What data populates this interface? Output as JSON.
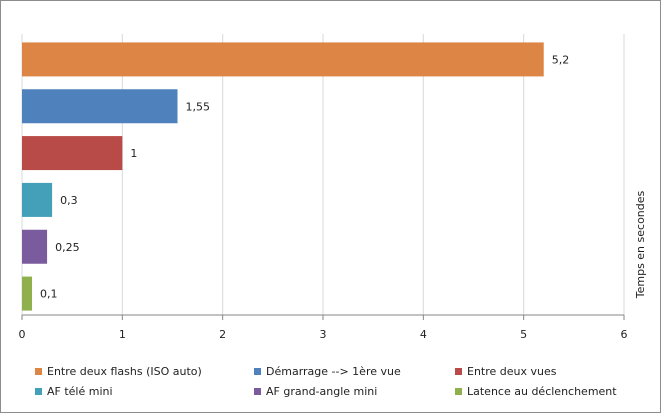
{
  "chart_data": {
    "type": "bar",
    "orientation": "horizontal",
    "categories": [
      "Entre deux flashs (ISO auto)",
      "Démarrage --> 1ère vue",
      "Entre deux vues",
      "AF télé mini",
      "AF grand-angle mini",
      "Latence au déclenchement"
    ],
    "values": [
      5.2,
      1.55,
      1,
      0.3,
      0.25,
      0.1
    ],
    "value_labels": [
      "5,2",
      "1,55",
      "1",
      "0,3",
      "0,25",
      "0,1"
    ],
    "colors": [
      "#dc8544",
      "#4f81bd",
      "#b84a47",
      "#43a0b8",
      "#7a5c9e",
      "#8fb04c"
    ],
    "xlim": [
      0,
      6
    ],
    "x_ticks": [
      "0",
      "1",
      "2",
      "3",
      "4",
      "5",
      "6"
    ],
    "ylabel": "Temps en secondes",
    "grid": true,
    "legend_position": "bottom"
  }
}
